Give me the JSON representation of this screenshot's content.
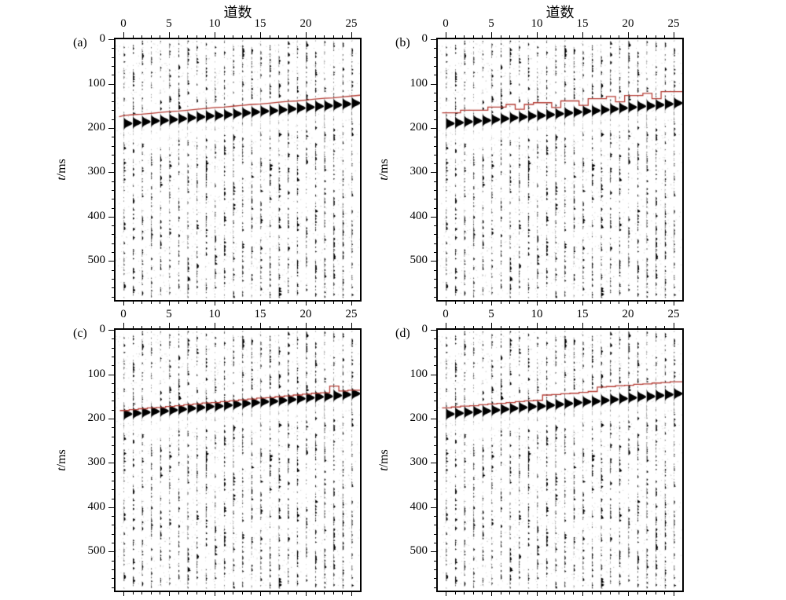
{
  "figure_labels": {
    "x_axis_title": "道数",
    "y_axis_variable": "t",
    "y_axis_unit": "/ms"
  },
  "chart_data": {
    "type": "seismic-wiggle-section",
    "layout": "2x2 panels, identical noisy seismic record, different first-break pick lines",
    "x_axis": {
      "title": "道数",
      "ticks": [
        0,
        5,
        10,
        15,
        20,
        25
      ],
      "minor_step": 1,
      "n_traces": 26
    },
    "y_axis": {
      "title": "t/ms",
      "ticks": [
        0,
        100,
        200,
        300,
        400,
        500
      ],
      "minor_step": 20,
      "range_ms": [
        0,
        590
      ]
    },
    "pick_line_color": "#b43c34",
    "first_break_times_ms": [
      185,
      183,
      181,
      179,
      178,
      176,
      174,
      172,
      170,
      168,
      167,
      165,
      163,
      161,
      159,
      157,
      156,
      154,
      152,
      150,
      148,
      146,
      145,
      143,
      141,
      139
    ],
    "panels": [
      {
        "label": "(a)",
        "top_title": "道数",
        "pick_style": "line",
        "picks_ms": [
          172,
          170,
          169,
          167,
          165,
          163,
          162,
          160,
          158,
          156,
          154,
          153,
          151,
          149,
          147,
          146,
          144,
          142,
          140,
          139,
          137,
          135,
          133,
          132,
          130,
          128
        ]
      },
      {
        "label": "(b)",
        "top_title": "道数",
        "pick_style": "step",
        "picks_ms": [
          166,
          166,
          160,
          160,
          160,
          153,
          153,
          147,
          158,
          147,
          143,
          143,
          154,
          139,
          139,
          149,
          134,
          134,
          129,
          141,
          127,
          127,
          122,
          134,
          118,
          118
        ]
      },
      {
        "label": "(c)",
        "top_title": "",
        "pick_style": "step",
        "picks_ms": [
          182,
          180,
          178,
          176,
          175,
          173,
          171,
          169,
          167,
          165,
          164,
          162,
          160,
          158,
          156,
          154,
          153,
          151,
          149,
          147,
          145,
          143,
          142,
          127,
          138,
          136
        ]
      },
      {
        "label": "(d)",
        "top_title": "",
        "pick_style": "step",
        "picks_ms": [
          176,
          174,
          172,
          171,
          169,
          167,
          166,
          164,
          162,
          160,
          159,
          147,
          146,
          144,
          143,
          141,
          139,
          129,
          128,
          126,
          125,
          123,
          122,
          120,
          119,
          117
        ]
      }
    ]
  }
}
